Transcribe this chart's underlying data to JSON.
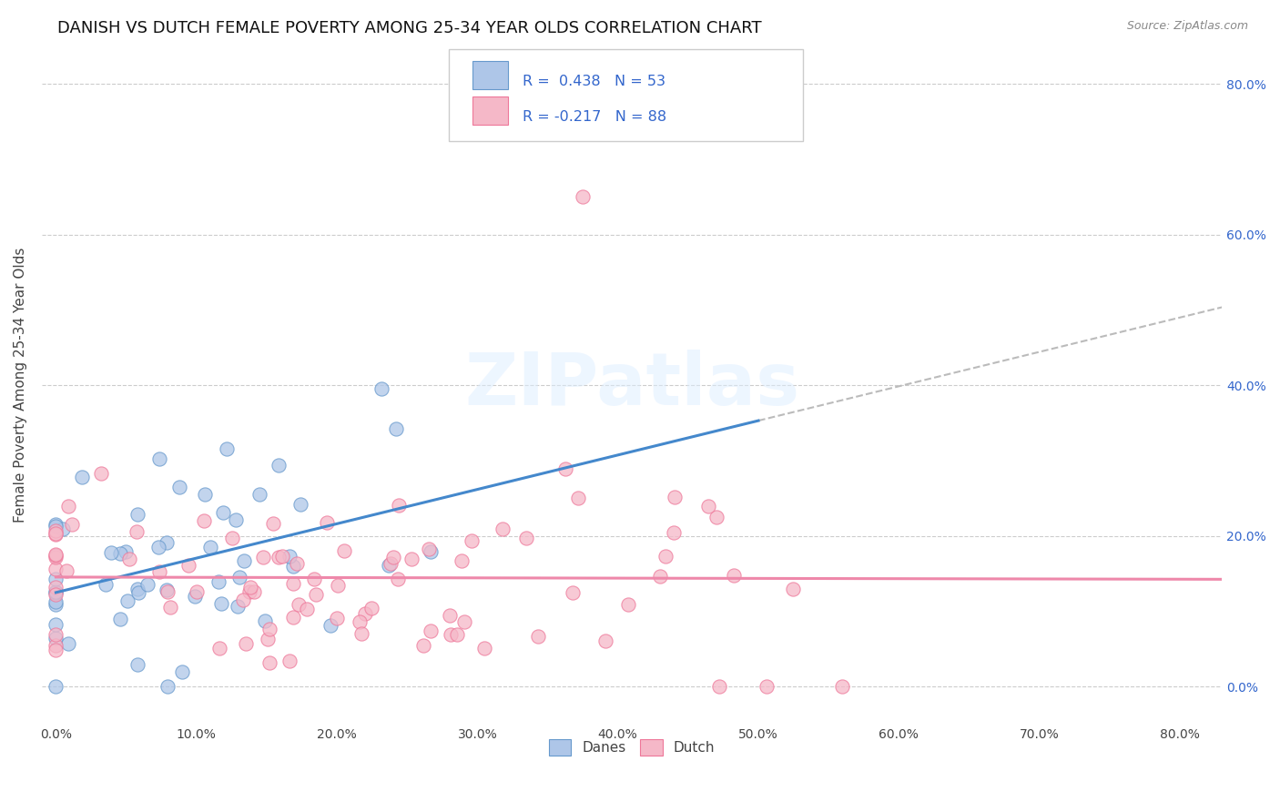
{
  "title": "DANISH VS DUTCH FEMALE POVERTY AMONG 25-34 YEAR OLDS CORRELATION CHART",
  "source": "Source: ZipAtlas.com",
  "ylabel": "Female Poverty Among 25-34 Year Olds",
  "xlim": [
    -0.01,
    0.83
  ],
  "ylim": [
    -0.05,
    0.85
  ],
  "danes_color": "#aec6e8",
  "dutch_color": "#f5b8c8",
  "danes_edge_color": "#6699cc",
  "dutch_edge_color": "#ee7799",
  "danes_line_color": "#4488cc",
  "dutch_line_color": "#ee88aa",
  "trend_ext_color": "#bbbbbb",
  "danes_R": 0.438,
  "danes_N": 53,
  "dutch_R": -0.217,
  "dutch_N": 88,
  "legend_text_color": "#3366cc",
  "tick_color_blue": "#3366cc",
  "tick_color_dark": "#444444",
  "background_color": "#ffffff",
  "grid_color": "#cccccc",
  "title_fontsize": 13,
  "axis_label_fontsize": 11,
  "tick_fontsize": 10,
  "watermark": "ZIPatlas",
  "danes_seed": 42,
  "dutch_seed": 7
}
